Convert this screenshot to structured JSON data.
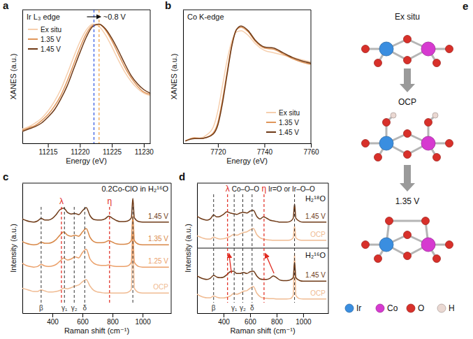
{
  "chart_data": [
    {
      "type": "line",
      "panel": "a",
      "title": "Ir L₃ edge",
      "x_label": "Energy (eV)",
      "y_label": "XANES (a.u.)",
      "x": [
        11211,
        11212,
        11213,
        11214,
        11215,
        11216,
        11217,
        11218,
        11219,
        11220,
        11221,
        11222,
        11223,
        11224,
        11225,
        11226,
        11227,
        11228,
        11229,
        11230,
        11231
      ],
      "series": [
        {
          "name": "Ex situ",
          "color": "#f6cfae",
          "values": [
            0.12,
            0.14,
            0.17,
            0.21,
            0.27,
            0.35,
            0.45,
            0.58,
            0.72,
            0.85,
            0.95,
            1.0,
            0.98,
            0.91,
            0.81,
            0.7,
            0.6,
            0.52,
            0.46,
            0.42,
            0.4
          ]
        },
        {
          "name": "1.35 V",
          "color": "#e0965a",
          "values": [
            0.11,
            0.13,
            0.15,
            0.19,
            0.24,
            0.31,
            0.4,
            0.52,
            0.66,
            0.8,
            0.92,
            0.99,
            1.0,
            0.95,
            0.86,
            0.75,
            0.64,
            0.55,
            0.48,
            0.43,
            0.41
          ]
        },
        {
          "name": "1.45 V",
          "color": "#6f3a17",
          "values": [
            0.1,
            0.12,
            0.14,
            0.17,
            0.22,
            0.28,
            0.37,
            0.48,
            0.62,
            0.76,
            0.89,
            0.98,
            1.0,
            0.96,
            0.88,
            0.78,
            0.67,
            0.57,
            0.5,
            0.45,
            0.42
          ]
        }
      ],
      "xlim": [
        11211,
        11231
      ],
      "xticks": [
        11215,
        11220,
        11225,
        11230
      ],
      "ylim": [
        0,
        1.12
      ],
      "tick_labels": "x",
      "legend": "upper left",
      "vlines": [
        {
          "x": 11222.2,
          "color": "#2d55e0"
        },
        {
          "x": 11223.0,
          "color": "#f0a040"
        }
      ],
      "annotation": "~0.8 V"
    },
    {
      "type": "line",
      "panel": "b",
      "title": "Co K-edge",
      "x_label": "Energy (eV)",
      "y_label": "XANES (a.u.)",
      "x": [
        7706,
        7710,
        7712,
        7715,
        7718,
        7720,
        7722,
        7724,
        7726,
        7728,
        7730,
        7733,
        7736,
        7740,
        7744,
        7748,
        7752,
        7756,
        7760
      ],
      "series": [
        {
          "name": "Ex situ",
          "color": "#f6cfae",
          "values": [
            0.02,
            0.05,
            0.045,
            0.07,
            0.14,
            0.28,
            0.5,
            0.72,
            0.88,
            0.96,
            0.97,
            0.93,
            0.86,
            0.8,
            0.78,
            0.76,
            0.74,
            0.72,
            0.7
          ]
        },
        {
          "name": "1.35 V",
          "color": "#e0965a",
          "values": [
            0.02,
            0.045,
            0.04,
            0.05,
            0.09,
            0.18,
            0.38,
            0.62,
            0.85,
            0.98,
            1.0,
            0.96,
            0.88,
            0.82,
            0.81,
            0.77,
            0.73,
            0.7,
            0.68
          ]
        },
        {
          "name": "1.45 V",
          "color": "#6f3a17",
          "values": [
            0.02,
            0.04,
            0.04,
            0.05,
            0.08,
            0.16,
            0.35,
            0.6,
            0.84,
            0.98,
            1.01,
            0.97,
            0.89,
            0.83,
            0.82,
            0.78,
            0.74,
            0.71,
            0.69
          ]
        }
      ],
      "xlim": [
        7705,
        7760
      ],
      "xticks": [
        7720,
        7740,
        7760
      ],
      "ylim": [
        0,
        1.15
      ],
      "tick_labels": "x",
      "legend": "lower right"
    },
    {
      "type": "line",
      "panel": "c",
      "title": "0.2Co-ClO in H₂¹⁶O",
      "x_label": "Raman shift (cm⁻¹)",
      "y_label": "Intensity (a.u.)",
      "x": [
        200,
        225,
        250,
        275,
        300,
        325,
        350,
        375,
        400,
        425,
        450,
        475,
        500,
        525,
        550,
        575,
        600,
        625,
        650,
        675,
        700,
        725,
        750,
        775,
        800,
        825,
        850,
        875,
        900,
        925,
        935,
        945,
        975,
        1000,
        1025,
        1050,
        1075,
        1100,
        1125,
        1150,
        1175
      ],
      "series": [
        {
          "name": "OCP",
          "color": "#f0bb92",
          "values": [
            1.3,
            1.2,
            1.1,
            1.0,
            1.0,
            1.15,
            1.05,
            0.95,
            0.95,
            1.0,
            1.1,
            1.3,
            1.25,
            1.35,
            1.5,
            1.6,
            1.9,
            2.1,
            1.5,
            1.1,
            0.95,
            0.9,
            0.85,
            0.85,
            0.85,
            0.85,
            0.85,
            0.85,
            0.9,
            1.2,
            6.2,
            1.3,
            0.9,
            0.85,
            0.85,
            0.85,
            0.85,
            0.85,
            0.85,
            0.85,
            0.85
          ]
        },
        {
          "name": "1.25 V",
          "color": "#eba06a",
          "values": [
            3.6,
            3.4,
            3.3,
            3.25,
            3.3,
            3.5,
            3.35,
            3.3,
            3.35,
            3.5,
            3.8,
            4.1,
            3.9,
            4.0,
            4.2,
            4.1,
            4.6,
            4.9,
            4.0,
            3.6,
            3.45,
            3.4,
            3.4,
            3.45,
            3.35,
            3.3,
            3.3,
            3.3,
            3.35,
            3.7,
            6.4,
            3.7,
            3.3,
            3.25,
            3.25,
            3.25,
            3.25,
            3.25,
            3.25,
            3.25,
            3.25
          ]
        },
        {
          "name": "1.35 V",
          "color": "#d88848",
          "values": [
            5.6,
            5.45,
            5.35,
            5.3,
            5.35,
            5.55,
            5.45,
            5.45,
            5.55,
            5.8,
            6.2,
            6.5,
            6.2,
            6.1,
            6.2,
            6.1,
            6.5,
            6.8,
            6.0,
            5.6,
            5.5,
            5.5,
            5.55,
            5.7,
            5.55,
            5.4,
            5.35,
            5.35,
            5.4,
            5.7,
            8.0,
            5.7,
            5.35,
            5.3,
            5.3,
            5.3,
            5.3,
            5.3,
            5.3,
            5.3,
            5.3
          ]
        },
        {
          "name": "1.45 V",
          "color": "#6f3a17",
          "values": [
            7.7,
            7.55,
            7.45,
            7.4,
            7.5,
            7.75,
            7.6,
            7.6,
            7.75,
            8.1,
            8.55,
            8.7,
            8.3,
            8.15,
            8.2,
            8.1,
            8.45,
            8.75,
            8.0,
            7.65,
            7.6,
            7.6,
            7.7,
            7.95,
            7.75,
            7.55,
            7.45,
            7.45,
            7.5,
            7.8,
            9.6,
            7.8,
            7.45,
            7.4,
            7.4,
            7.4,
            7.4,
            7.4,
            7.4,
            7.4,
            7.4
          ]
        }
      ],
      "xlim": [
        200,
        1190
      ],
      "xticks": [
        400,
        600,
        800,
        1000
      ],
      "ylim": [
        -1,
        11
      ],
      "tick_labels": "x",
      "reference_lines": [
        {
          "x": 325,
          "label": "β",
          "color": "#333333"
        },
        {
          "x": 480,
          "label": "γ₁",
          "color": "#333333"
        },
        {
          "x": 545,
          "label": "γ₂",
          "color": "#333333"
        },
        {
          "x": 615,
          "label": "δ",
          "color": "#333333"
        },
        {
          "x": 935,
          "color": "#333333"
        }
      ],
      "highlight_lines": [
        {
          "x": 460,
          "label": "λ",
          "color": "#e0281e"
        },
        {
          "x": 780,
          "label": "η",
          "color": "#e0281e"
        }
      ]
    },
    {
      "type": "line",
      "panel": "d",
      "x_label": "Raman shift (cm⁻¹)",
      "y_label": "Intensity (a.u.)",
      "x": [
        200,
        225,
        250,
        275,
        300,
        325,
        350,
        375,
        400,
        425,
        450,
        475,
        500,
        525,
        550,
        575,
        600,
        625,
        650,
        675,
        700,
        725,
        750,
        775,
        800,
        825,
        850,
        875,
        900,
        925,
        935,
        945,
        975,
        1000,
        1025,
        1050,
        1075,
        1100,
        1125,
        1150,
        1175
      ],
      "panes": [
        {
          "label": "H₂¹⁸O",
          "ylim": [
            0,
            5
          ],
          "series": [
            {
              "name": "OCP",
              "color": "#f0bb92",
              "values": [
                0.95,
                0.85,
                0.75,
                0.7,
                0.7,
                0.85,
                0.75,
                0.7,
                0.72,
                0.8,
                0.9,
                1.05,
                1.0,
                1.1,
                1.2,
                1.25,
                1.4,
                1.5,
                1.05,
                0.8,
                0.7,
                0.65,
                0.62,
                0.6,
                0.6,
                0.6,
                0.6,
                0.6,
                0.62,
                0.8,
                1.7,
                0.8,
                0.62,
                0.6,
                0.6,
                0.6,
                0.6,
                0.6,
                0.6,
                0.6,
                0.6
              ]
            },
            {
              "name": "1.45 V",
              "color": "#6f3a17",
              "values": [
                2.45,
                2.3,
                2.2,
                2.15,
                2.25,
                2.55,
                2.4,
                2.45,
                2.6,
                2.8,
                2.7,
                2.65,
                2.6,
                2.7,
                2.75,
                2.7,
                2.85,
                2.9,
                2.45,
                2.25,
                2.4,
                2.3,
                2.15,
                2.1,
                2.05,
                2.0,
                2.0,
                2.0,
                2.05,
                2.3,
                3.4,
                2.3,
                2.05,
                2.0,
                2.0,
                2.0,
                2.0,
                2.0,
                2.0,
                2.0,
                2.0
              ]
            }
          ]
        },
        {
          "label": "H₂¹⁶O",
          "ylim": [
            -0.5,
            5
          ],
          "series": [
            {
              "name": "OCP",
              "color": "#f0bb92",
              "values": [
                1.1,
                0.95,
                0.85,
                0.8,
                0.8,
                0.95,
                0.85,
                0.78,
                0.78,
                0.85,
                0.95,
                1.15,
                1.1,
                1.2,
                1.35,
                1.4,
                1.6,
                1.75,
                1.2,
                0.9,
                0.78,
                0.75,
                0.72,
                0.72,
                0.7,
                0.7,
                0.7,
                0.7,
                0.72,
                1.0,
                4.6,
                1.0,
                0.72,
                0.7,
                0.7,
                0.7,
                0.7,
                0.7,
                0.7,
                0.7,
                0.7
              ]
            },
            {
              "name": "1.45 V",
              "color": "#6f3a17",
              "values": [
                2.65,
                2.5,
                2.4,
                2.35,
                2.45,
                2.7,
                2.55,
                2.5,
                2.55,
                2.75,
                3.0,
                3.05,
                2.85,
                2.85,
                2.95,
                2.85,
                3.0,
                3.05,
                2.65,
                2.4,
                2.35,
                2.35,
                2.45,
                2.65,
                2.5,
                2.3,
                2.25,
                2.25,
                2.3,
                2.5,
                3.8,
                2.5,
                2.25,
                2.2,
                2.2,
                2.2,
                2.2,
                2.2,
                2.2,
                2.2,
                2.2
              ]
            }
          ]
        }
      ],
      "xlim": [
        200,
        1190
      ],
      "xticks": [
        400,
        600,
        800,
        1000
      ],
      "tick_labels": "x",
      "reference_lines": [
        {
          "x": 325,
          "label": "β",
          "color": "#333333"
        },
        {
          "x": 480,
          "label": "γ₁",
          "color": "#333333"
        },
        {
          "x": 545,
          "label": "γ₂",
          "color": "#333333"
        },
        {
          "x": 615,
          "label": "δ",
          "color": "#333333"
        },
        {
          "x": 935,
          "color": "#333333"
        }
      ],
      "highlight_lines": [
        {
          "x": 430,
          "label": "λ",
          "description": "Co–O–O",
          "shifted_from": 460,
          "color": "#e0281e"
        },
        {
          "x": 705,
          "label": "η",
          "description": "Ir=O or Ir–O–O",
          "shifted_from": 780,
          "color": "#e0281e"
        }
      ]
    },
    {
      "type": "diagram",
      "panel": "e",
      "stages": [
        "Ex situ",
        "OCP",
        "1.35 V"
      ],
      "series": [
        {
          "name": "Ir",
          "color": "#3a8ee0"
        },
        {
          "name": "Co",
          "color": "#d63ad0"
        },
        {
          "name": "O",
          "color": "#d8302a"
        },
        {
          "name": "H",
          "color": "#ead8d2"
        }
      ]
    }
  ]
}
